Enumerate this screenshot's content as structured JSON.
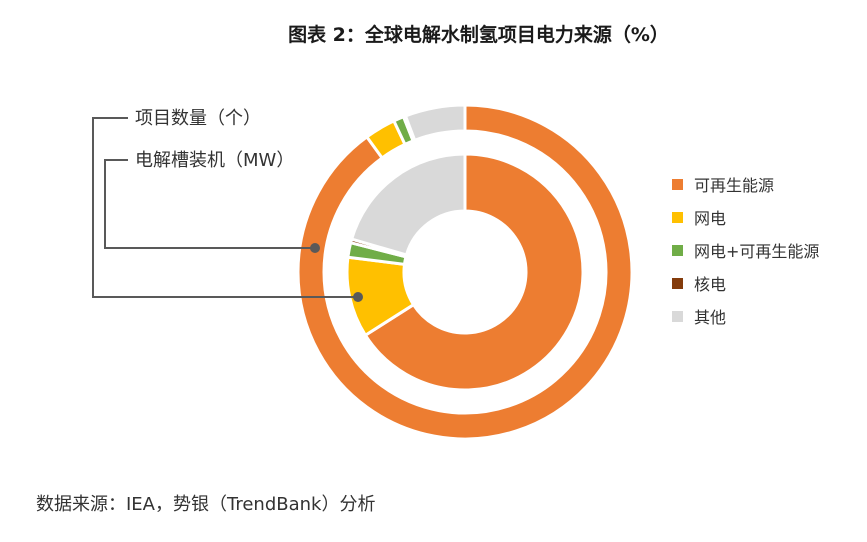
{
  "title": "图表 2：全球电解水制氢项目电力来源（%）",
  "source": "数据来源：IEA，势银（TrendBank）分析",
  "colors": {
    "renewable": "#ED7D31",
    "grid": "#FFC000",
    "grid_renewable": "#70AD47",
    "nuclear": "#843C0C",
    "other": "#D9D9D9",
    "callout_line": "#595959"
  },
  "chart_data": {
    "type": "pie",
    "subtype": "double-donut",
    "title": "图表 2：全球电解水制氢项目电力来源（%）",
    "categories": [
      "可再生能源",
      "网电",
      "网电+可再生能源",
      "核电",
      "其他"
    ],
    "series": [
      {
        "name": "项目数量（个）",
        "ring": "inner",
        "values": [
          66,
          11,
          2,
          0.5,
          20.5
        ]
      },
      {
        "name": "电解槽装机（MW）",
        "ring": "outer",
        "values": [
          90,
          3,
          1,
          0.2,
          5.8
        ]
      }
    ],
    "legend": {
      "position": "right"
    }
  }
}
